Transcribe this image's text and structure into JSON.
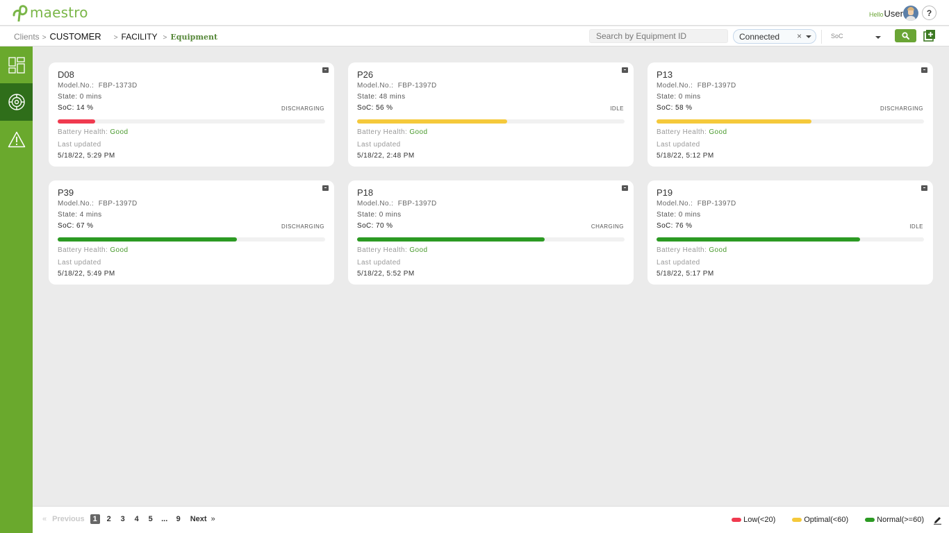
{
  "header": {
    "app_name": "maestro",
    "hello": "Hello",
    "user": "User",
    "help": "?"
  },
  "breadcrumb": {
    "clients": "Clients",
    "sep": ">",
    "customer": "CUSTOMER",
    "facility": "FACILITY",
    "equipment": "Equipment"
  },
  "filters": {
    "search_placeholder": "Search by Equipment ID",
    "connection": "Connected",
    "clear": "×",
    "soc_placeholder": "SoC"
  },
  "sidebar": {
    "items": [
      {
        "icon": "dashboard-icon",
        "active": false
      },
      {
        "icon": "equipment-gear-icon",
        "active": true
      },
      {
        "icon": "alert-icon",
        "active": false
      }
    ]
  },
  "labels": {
    "model": "Model.No.:",
    "state": "State:",
    "soc": "SoC:",
    "health": "Battery Health:",
    "last_updated": "Last updated"
  },
  "colors": {
    "brand": "#6aa92d",
    "low": "#f03a4f",
    "optimal": "#f5c93b",
    "normal": "#2c9a23"
  },
  "equipment": [
    {
      "id": "D08",
      "model": "FBP-1373D",
      "state": "0 mins",
      "soc": "14 %",
      "soc_value": 14,
      "status": "DISCHARGING",
      "health": "Good",
      "updated": "5/18/22, 5:29 PM"
    },
    {
      "id": "P26",
      "model": "FBP-1397D",
      "state": "48 mins",
      "soc": "56 %",
      "soc_value": 56,
      "status": "IDLE",
      "health": "Good",
      "updated": "5/18/22, 2:48 PM"
    },
    {
      "id": "P13",
      "model": "FBP-1397D",
      "state": "0 mins",
      "soc": "58 %",
      "soc_value": 58,
      "status": "DISCHARGING",
      "health": "Good",
      "updated": "5/18/22, 5:12 PM"
    },
    {
      "id": "P39",
      "model": "FBP-1397D",
      "state": "4 mins",
      "soc": "67 %",
      "soc_value": 67,
      "status": "DISCHARGING",
      "health": "Good",
      "updated": "5/18/22, 5:49 PM"
    },
    {
      "id": "P18",
      "model": "FBP-1397D",
      "state": "0 mins",
      "soc": "70 %",
      "soc_value": 70,
      "status": "CHARGING",
      "health": "Good",
      "updated": "5/18/22, 5:52 PM"
    },
    {
      "id": "P19",
      "model": "FBP-1397D",
      "state": "0 mins",
      "soc": "76 %",
      "soc_value": 76,
      "status": "IDLE",
      "health": "Good",
      "updated": "5/18/22, 5:17 PM"
    }
  ],
  "pagination": {
    "prev_chevron": "«",
    "previous": "Previous",
    "pages": [
      "1",
      "2",
      "3",
      "4",
      "5",
      "...",
      "9"
    ],
    "current": "1",
    "next": "Next",
    "next_chevron": "»"
  },
  "legend": {
    "low": "Low(<20)",
    "optimal": "Optimal(<60)",
    "normal": "Normal(>=60)"
  }
}
